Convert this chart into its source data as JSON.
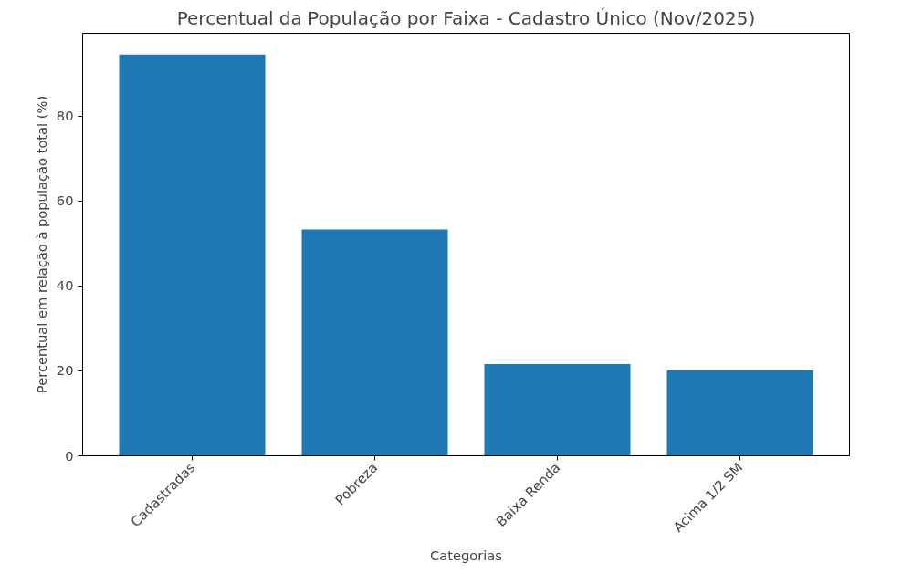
{
  "chart_data": {
    "type": "bar",
    "title": "Percentual da População por Faixa - Cadastro Único (Nov/2025)",
    "xlabel": "Categorias",
    "ylabel": "Percentual em relação à população total (%)",
    "categories": [
      "Cadastradas",
      "Pobreza",
      "Baixa Renda",
      "Acima 1/2 SM"
    ],
    "values": [
      94.5,
      53.3,
      21.6,
      20.1
    ],
    "color": "#1f77b4",
    "ylim": [
      0,
      99.5
    ],
    "yticks": [
      0,
      20,
      40,
      60,
      80
    ],
    "grid": false
  }
}
